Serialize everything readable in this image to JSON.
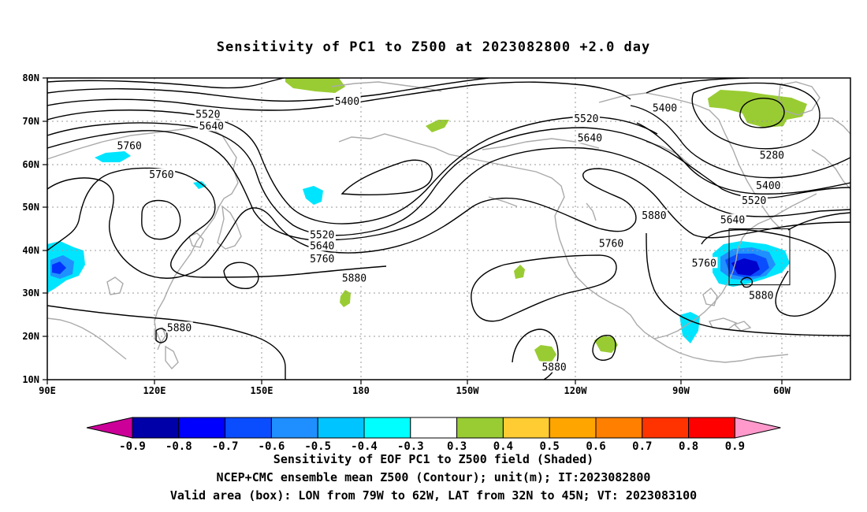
{
  "title": "Sensitivity of PC1 to Z500 at 2023082800 +2.0 day",
  "map": {
    "lon_ticks": [
      "90E",
      "120E",
      "150E",
      "180",
      "150W",
      "120W",
      "90W",
      "60W"
    ],
    "lat_ticks": [
      "80N",
      "70N",
      "60N",
      "50N",
      "40N",
      "30N",
      "20N",
      "10N"
    ],
    "contour_labels": [
      {
        "text": "5400",
        "lon": 174,
        "lat": 74.5
      },
      {
        "text": "5520",
        "lon": 135,
        "lat": 71.5
      },
      {
        "text": "5640",
        "lon": 136,
        "lat": 68.8
      },
      {
        "text": "5760",
        "lon": 113,
        "lat": 64.2
      },
      {
        "text": "5760",
        "lon": 122,
        "lat": 57.5
      },
      {
        "text": "5520",
        "lon": 167,
        "lat": 43.5
      },
      {
        "text": "5640",
        "lon": 167,
        "lat": 41.0
      },
      {
        "text": "5760",
        "lon": 167,
        "lat": 38.0
      },
      {
        "text": "5880",
        "lon": 176,
        "lat": 33.5
      },
      {
        "text": "5880",
        "lon": 127,
        "lat": 22.0
      },
      {
        "text": "5400",
        "lon": -97,
        "lat": 73.0
      },
      {
        "text": "5520",
        "lon": -119,
        "lat": 70.5
      },
      {
        "text": "5640",
        "lon": -118,
        "lat": 66.0
      },
      {
        "text": "5280",
        "lon": -67,
        "lat": 62.0
      },
      {
        "text": "5400",
        "lon": -68,
        "lat": 55.0
      },
      {
        "text": "5520",
        "lon": -72,
        "lat": 51.5
      },
      {
        "text": "5640",
        "lon": -78,
        "lat": 47.0
      },
      {
        "text": "5880",
        "lon": -100,
        "lat": 48.0
      },
      {
        "text": "5760",
        "lon": -112,
        "lat": 41.5
      },
      {
        "text": "5760",
        "lon": -86,
        "lat": 37.0
      },
      {
        "text": "5880",
        "lon": -70,
        "lat": 29.5
      },
      {
        "text": "5880",
        "lon": -128,
        "lat": 12.8
      }
    ],
    "valid_box": {
      "lon_west": -79,
      "lon_east": -62,
      "lat_south": 32,
      "lat_north": 45
    },
    "colors": {
      "coast": "#aaaaaa",
      "contour": "#000000",
      "grid": "#999999",
      "positive": "#99cc33",
      "neg_weak": "#00e5ff",
      "neg_mid": "#1f90ff",
      "neg_strong": "#0033ff",
      "neg_max": "#0000cc"
    }
  },
  "colorbar": {
    "colors": [
      "#cc0099",
      "#0000a8",
      "#0000ff",
      "#0a4dff",
      "#1f8fff",
      "#00c4ff",
      "#00ffff",
      "#ffffff",
      "#99cc33",
      "#ffcc33",
      "#ffa500",
      "#ff7f00",
      "#ff3300",
      "#ff0000",
      "#ff99cc"
    ],
    "labels": [
      "-0.9",
      "-0.8",
      "-0.7",
      "-0.6",
      "-0.5",
      "-0.4",
      "-0.3",
      "0.3",
      "0.4",
      "0.5",
      "0.6",
      "0.7",
      "0.8",
      "0.9"
    ]
  },
  "footer": {
    "line1": "Sensitivity of EOF PC1 to Z500 field (Shaded)",
    "line2": "NCEP+CMC ensemble mean Z500 (Contour); unit(m); IT:2023082800",
    "line3": "Valid area (box): LON from 79W to 62W, LAT from 32N to 45N; VT: 2023083100"
  }
}
